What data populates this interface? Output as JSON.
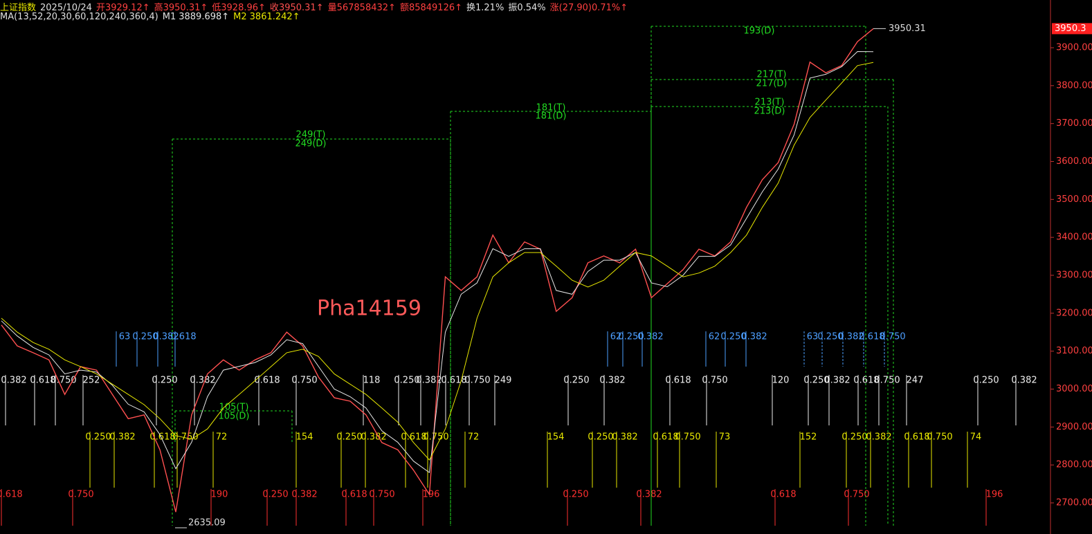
{
  "chart_data": {
    "type": "line",
    "info": [
      {
        "text": "上证指数",
        "color": "#e8e800"
      },
      {
        "text": "2025/10/24",
        "color": "#e0e0e0"
      },
      {
        "text": "开3929.12↑",
        "color": "#ff4040"
      },
      {
        "text": "高3950.31↑",
        "color": "#ff4040"
      },
      {
        "text": "低3928.96↑",
        "color": "#ff4040"
      }
    ],
    "info_after": [
      {
        "text": "量567858432↑",
        "color": "#ff4040"
      },
      {
        "text": "额85849126↑",
        "color": "#ff4040"
      },
      {
        "text": "换1.21%",
        "color": "#e0e0e0"
      },
      {
        "text": "振0.54%",
        "color": "#e0e0e0"
      },
      {
        "text": "涨(27.90)0.71%↑",
        "color": "#ff4040"
      }
    ],
    "ma_title": "MA(13,52,20,30,60,120,240,360,4)",
    "series": [
      {
        "name": "收",
        "current": "3950.31↑",
        "color": "#ff5050",
        "values": [
          3169,
          3114,
          3096,
          3077,
          2986,
          3059,
          3050,
          2986,
          2922,
          2932,
          2840,
          2676,
          2932,
          3040,
          3077,
          3050,
          3077,
          3096,
          3150,
          3114,
          3032,
          2977,
          2968,
          2932,
          2859,
          2840,
          2786,
          2722,
          3296,
          3260,
          3296,
          3406,
          3333,
          3388,
          3369,
          3205,
          3241,
          3333,
          3351,
          3333,
          3369,
          3241,
          3278,
          3315,
          3369,
          3351,
          3388,
          3479,
          3552,
          3597,
          3698,
          3862,
          3834,
          3853,
          3916,
          3950.31
        ]
      },
      {
        "name": "M1",
        "current": "3889.698↑",
        "color": "#e8e8e8",
        "values": [
          3180,
          3140,
          3110,
          3090,
          3040,
          3050,
          3045,
          3010,
          2960,
          2940,
          2880,
          2790,
          2860,
          2980,
          3050,
          3060,
          3070,
          3090,
          3130,
          3120,
          3060,
          3000,
          2980,
          2950,
          2890,
          2860,
          2810,
          2780,
          3150,
          3250,
          3280,
          3370,
          3350,
          3370,
          3370,
          3260,
          3250,
          3310,
          3340,
          3340,
          3360,
          3280,
          3270,
          3300,
          3350,
          3350,
          3380,
          3450,
          3520,
          3580,
          3670,
          3820,
          3830,
          3850,
          3890,
          3889.698
        ]
      },
      {
        "name": "M2",
        "current": "3861.242↑",
        "color": "#e8e800",
        "values": [
          3187,
          3150,
          3123,
          3105,
          3077,
          3059,
          3040,
          3013,
          2986,
          2959,
          2922,
          2877,
          2868,
          2895,
          2950,
          2986,
          3022,
          3059,
          3096,
          3105,
          3086,
          3040,
          3013,
          2986,
          2950,
          2913,
          2859,
          2813,
          2895,
          3022,
          3187,
          3296,
          3333,
          3360,
          3360,
          3324,
          3287,
          3269,
          3287,
          3324,
          3360,
          3351,
          3324,
          3296,
          3306,
          3324,
          3360,
          3406,
          3479,
          3543,
          3643,
          3716,
          3762,
          3807,
          3853,
          3861.242
        ]
      }
    ],
    "ylim": [
      2640,
      3975
    ],
    "yticks": [
      {
        "value": 2700,
        "label": "2700.00"
      },
      {
        "value": 2800,
        "label": "2800.00"
      },
      {
        "value": 2900,
        "label": "2900.00"
      },
      {
        "value": 3000,
        "label": "3000.00"
      },
      {
        "value": 3100,
        "label": "3100.00"
      },
      {
        "value": 3200,
        "label": "3200.00"
      },
      {
        "value": 3300,
        "label": "3300.00"
      },
      {
        "value": 3400,
        "label": "3400.00"
      },
      {
        "value": 3500,
        "label": "3500.00"
      },
      {
        "value": 3600,
        "label": "3600.00"
      },
      {
        "value": 3700,
        "label": "3700.00"
      },
      {
        "value": 3800,
        "label": "3800.00"
      },
      {
        "value": 3900,
        "label": "3900.00"
      }
    ],
    "last_price": {
      "value": 3950.31,
      "label": "3950.3"
    },
    "high_label": "3950.31",
    "low_label": "2635.09",
    "watermark": "Pha14159",
    "cycle_labels": [
      "249(T)",
      "249(D)",
      "181(T)",
      "181(D)",
      "193(D)",
      "217(T)",
      "217(D)",
      "213(T)",
      "213(D)",
      "105(T)",
      "105(D)"
    ],
    "fib_rows": [
      {
        "color": "#4d9fff",
        "labels": [
          "63",
          "0.250",
          "0.382",
          "0.618",
          "62",
          "0.250",
          "0.382",
          "62",
          "0.250",
          "0.382",
          "63",
          "0.250",
          "0.382",
          "0.618",
          "0.750"
        ]
      },
      {
        "color": "#f0f0f0",
        "labels": [
          "0.382",
          "0.618",
          "0.750",
          "252",
          "0.250",
          "0.382",
          "0.618",
          "0.750",
          "118",
          "0.250",
          "0.382",
          "0.618",
          "0.750",
          "249",
          "0.250",
          "0.382",
          "0.618",
          "0.750",
          "120",
          "0.250",
          "0.382",
          "0.618",
          "0.750",
          "247",
          "0.250",
          "0.382"
        ]
      },
      {
        "color": "#e8e800",
        "labels": [
          "0.250",
          "0.382",
          "0.618",
          "0.750",
          "72",
          "154",
          "0.250",
          "0.382",
          "0.618",
          "0.750",
          "72",
          "154",
          "0.250",
          "0.382",
          "0.618",
          "0.750",
          "73",
          "152",
          "0.250",
          "0.382",
          "0.618",
          "0.750",
          "74"
        ]
      },
      {
        "color": "#ff3030",
        "labels": [
          "0.618",
          "0.750",
          "190",
          "0.250",
          "0.382",
          "0.618",
          "0.750",
          "196",
          "0.250",
          "0.382",
          "0.618",
          "0.750",
          "196"
        ]
      }
    ]
  }
}
